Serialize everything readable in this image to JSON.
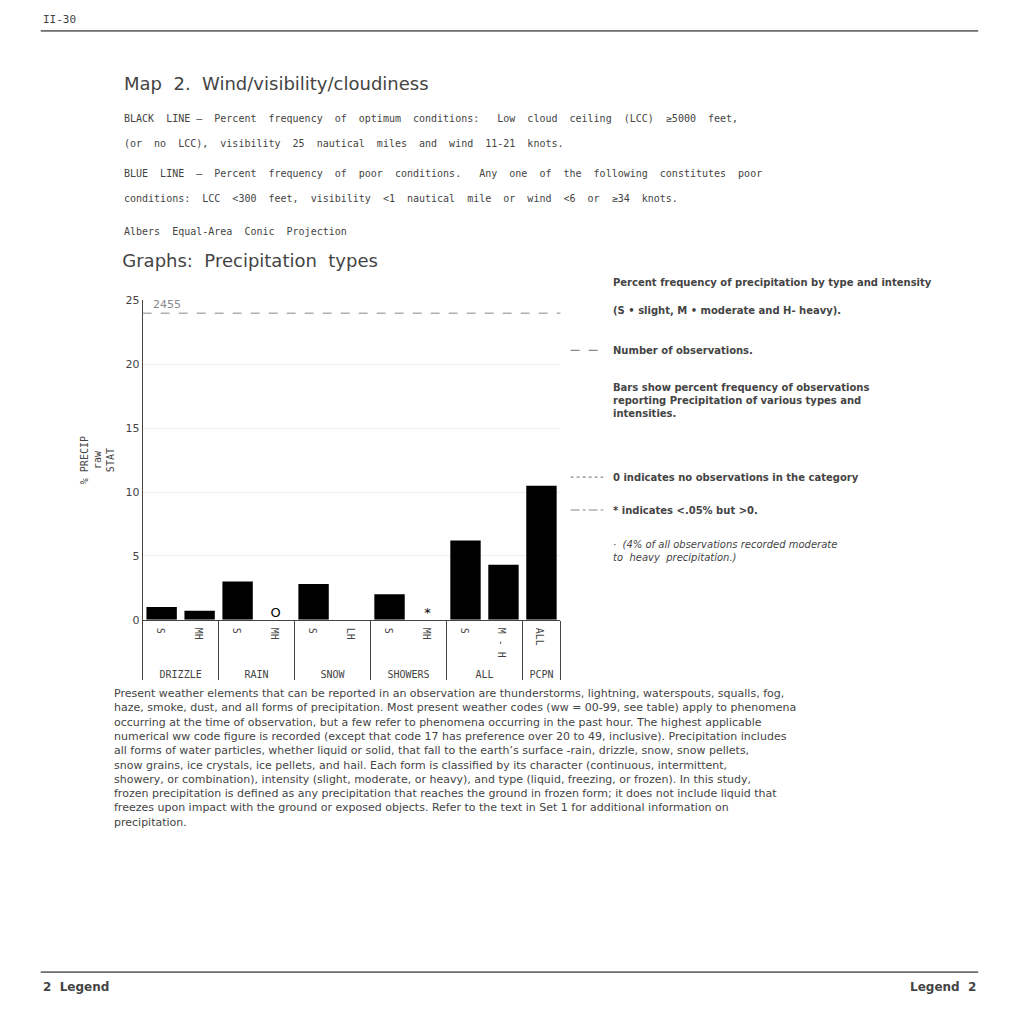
{
  "chart_data": {
    "type": "bar",
    "page_label": "II-30",
    "header_title": "Map  2.  Wind/visibility/cloudiness",
    "header_lines": [
      "BLACK  LINE —  Percent  frequency  of  optimum  conditions:   Low  cloud  ceiling  (LCC)  ≥5000  feet,",
      "(or  no  LCC),  visibility  25  nautical  miles  and  wind  11-21  knots.",
      "BLUE  LINE  —  Percent  frequency  of  poor  conditions.   Any  one  of  the  following  constitutes  poor",
      "conditions:  LCC  <300  feet,  visibility  <1  nautical  mile  or  wind  <6  or  ≥34  knots.",
      "Albers  Equal-Area  Conic  Projection"
    ],
    "title": "Graphs:  Precipitation  types",
    "ylabel": "% PRECIP\nraw\nSTAT",
    "groups": [
      "DRIZZLE",
      "DRIZZLE",
      "RAIN",
      "RAIN",
      "SNOW",
      "SNOW",
      "SHOWERS",
      "SHOWERS",
      "ALL",
      "ALL",
      "PCPN"
    ],
    "categories": [
      "S",
      "MH",
      "S",
      "MH",
      "S",
      "LH",
      "S",
      "MH",
      "S",
      "M - H",
      "ALL"
    ],
    "values": [
      1.0,
      0.7,
      3.0,
      0.0,
      2.8,
      0.0,
      2.0,
      0.0,
      6.2,
      4.3,
      10.5
    ],
    "color": "#000000",
    "bar_notes": [
      {
        "group": "RAIN",
        "category": "MH",
        "text": "O"
      },
      {
        "group": "SHOWERS",
        "category": "MH",
        "text": "*"
      }
    ],
    "reference_line": {
      "y": 24.0,
      "label": "2455",
      "line_style": "dashed"
    },
    "ylim": [
      0,
      25
    ],
    "yticks": [
      0,
      5,
      10,
      15,
      20,
      25
    ],
    "grid": true,
    "legend_notes": [
      {
        "text": "Percent frequency of precipitation by type and intensity"
      },
      {
        "text": "(S • slight, M • moderate and H- heavy)."
      },
      {
        "text": "Number of observations.",
        "line_style": "dashed"
      },
      {
        "text": "Bars show percent frequency of observations\nreporting Precipitation of various types and\nintensities."
      },
      {
        "text": "0 indicates no observations in the category",
        "line_style": "dotted"
      },
      {
        "text": "* indicates <.05% but >0.",
        "line_style": "dashdot"
      },
      {
        "text": "·  (4% of all observations recorded moderate\nto  heavy  precipitation.)"
      }
    ],
    "body_text": "Present weather elements that can be reported in an observation are thunderstorms, lightning, waterspouts, squalls, fog, haze, smoke, dust, and all forms of precipitation. Most present weather codes (ww = 00-99, see table) apply to phenomena occurring at the time of observation, but a few refer to phenomena occurring in the past hour. The highest applicable numerical ww code figure is recorded (except that code 17 has preference over 20 to 49, inclusive). Precipitation includes all forms of water particles, whether liquid or solid, that fall to the earth’s surface -rain, drizzle, snow, snow pellets, snow grains, ice crystals, ice pellets, and hail. Each form is classified by its character (continuous, intermittent, showery, or combination), intensity (slight, moderate, or heavy), and type (liquid, freezing, or frozen). In this study, frozen precipitation is defined as any precipitation that reaches the ground in frozen form; it does not include liquid that freezes upon impact with the ground or exposed objects. Refer to the text in Set 1 for additional information on precipitation.",
    "footer_left": "2  Legend",
    "footer_right": "Legend  2"
  }
}
